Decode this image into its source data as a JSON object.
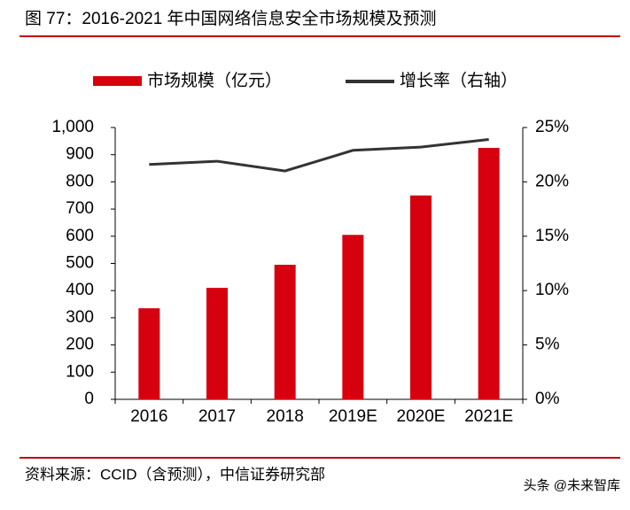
{
  "header": {
    "title": "图 77：2016-2021 年中国网络信息安全市场规模及预测"
  },
  "chart_data": {
    "type": "bar",
    "categories": [
      "2016",
      "2017",
      "2018",
      "2019E",
      "2020E",
      "2021E"
    ],
    "series": [
      {
        "name": "市场规模（亿元）",
        "type": "bar",
        "color": "#d7000f",
        "values": [
          335,
          410,
          495,
          605,
          750,
          925
        ]
      },
      {
        "name": "增长率（右轴）",
        "type": "line",
        "axis": "y2",
        "color": "#333333",
        "values": [
          21.6,
          21.9,
          21.0,
          22.9,
          23.2,
          23.9
        ]
      }
    ],
    "ylim": [
      0,
      1000
    ],
    "yticks": [
      0,
      100,
      200,
      300,
      400,
      500,
      600,
      700,
      800,
      900,
      {
        "value": 1000,
        "label": "1,000"
      }
    ],
    "y2lim": [
      0,
      25
    ],
    "y2ticks": [
      {
        "value": 0,
        "label": "0%"
      },
      {
        "value": 5,
        "label": "5%"
      },
      {
        "value": 10,
        "label": "10%"
      },
      {
        "value": 15,
        "label": "15%"
      },
      {
        "value": 20,
        "label": "20%"
      },
      {
        "value": 25,
        "label": "25%"
      }
    ]
  },
  "footer": {
    "source": "资料来源：CCID（含预测），中信证券研究部",
    "watermark": "头条 @未来智库"
  }
}
